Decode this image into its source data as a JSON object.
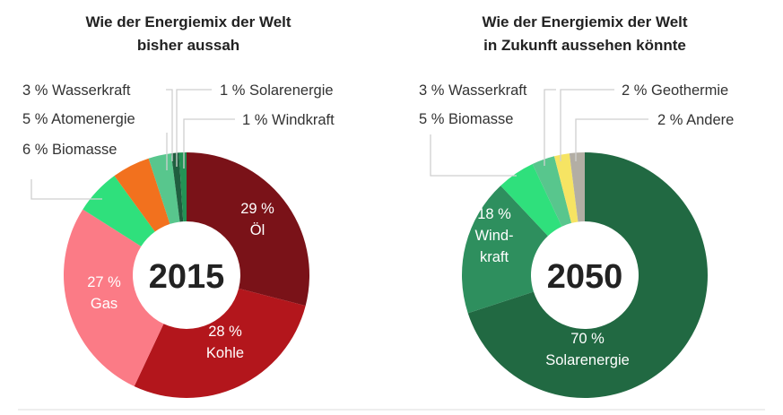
{
  "chart_data": [
    {
      "type": "pie",
      "variant": "donut",
      "title": [
        "Wie der Energiemix der Welt",
        "bisher aussah"
      ],
      "center_label": "2015",
      "unit": "%",
      "slices": [
        {
          "name": "Öl",
          "value": 29,
          "color": "#7a1218",
          "label": [
            "29 %",
            "Öl"
          ]
        },
        {
          "name": "Kohle",
          "value": 28,
          "color": "#b3161c",
          "label": [
            "28 %",
            "Kohle"
          ]
        },
        {
          "name": "Gas",
          "value": 27,
          "color": "#fb7b86",
          "label": [
            "27 %",
            "Gas"
          ]
        },
        {
          "name": "Biomasse",
          "value": 6,
          "color": "#2fe07c",
          "label": [
            "6 % Biomasse"
          ]
        },
        {
          "name": "Atomenergie",
          "value": 5,
          "color": "#f2711e",
          "label": [
            "5 % Atomenergie"
          ]
        },
        {
          "name": "Wasserkraft",
          "value": 3,
          "color": "#58c68d",
          "label": [
            "3 % Wasserkraft"
          ]
        },
        {
          "name": "Solarenergie",
          "value": 1,
          "color": "#1f5e3f",
          "label": [
            "1 % Solarenergie"
          ]
        },
        {
          "name": "Windkraft",
          "value": 1,
          "color": "#239255",
          "label": [
            "1 % Windkraft"
          ]
        }
      ]
    },
    {
      "type": "pie",
      "variant": "donut",
      "title": [
        "Wie der Energiemix der Welt",
        "in Zukunft aussehen könnte"
      ],
      "center_label": "2050",
      "unit": "%",
      "slices": [
        {
          "name": "Solarenergie",
          "value": 70,
          "color": "#216942",
          "label": [
            "70 %",
            "Solarenergie"
          ]
        },
        {
          "name": "Windkraft",
          "value": 18,
          "color": "#2e8f5e",
          "label": [
            "18 %",
            "Wind-",
            "kraft"
          ]
        },
        {
          "name": "Biomasse",
          "value": 5,
          "color": "#2fe07c",
          "label": [
            "5 % Biomasse"
          ]
        },
        {
          "name": "Wasserkraft",
          "value": 3,
          "color": "#58c68d",
          "label": [
            "3 % Wasserkraft"
          ]
        },
        {
          "name": "Geothermie",
          "value": 2,
          "color": "#f6e463",
          "label": [
            "2 % Geothermie"
          ]
        },
        {
          "name": "Andere",
          "value": 2,
          "color": "#b3aea4",
          "label": [
            "2 % Andere"
          ]
        }
      ]
    }
  ]
}
